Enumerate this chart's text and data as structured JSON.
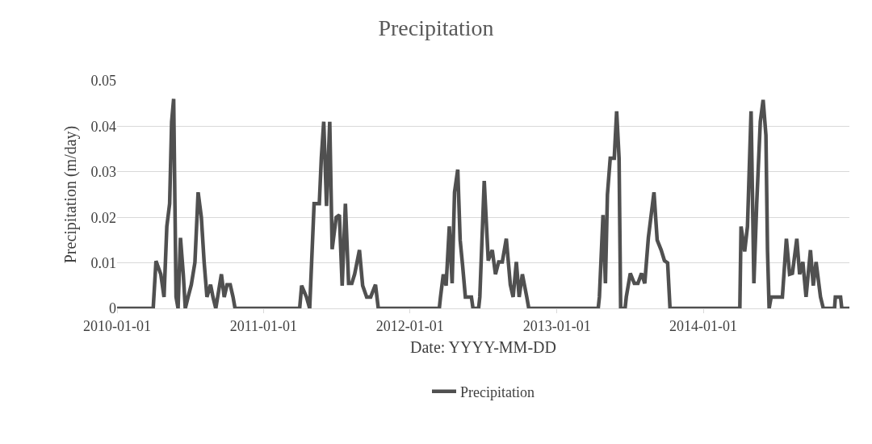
{
  "chart_data": {
    "type": "line",
    "title": "Precipitation",
    "xlabel": "Date: YYYY-MM-DD",
    "ylabel": "Precipitation (m/day)",
    "x": [
      "2010-01-01",
      "2010-04-01",
      "2010-04-08",
      "2010-04-20",
      "2010-04-28",
      "2010-05-05",
      "2010-05-12",
      "2010-05-17",
      "2010-05-22",
      "2010-05-28",
      "2010-06-02",
      "2010-06-08",
      "2010-06-15",
      "2010-06-20",
      "2010-06-27",
      "2010-07-05",
      "2010-07-14",
      "2010-07-22",
      "2010-07-30",
      "2010-08-06",
      "2010-08-13",
      "2010-08-22",
      "2010-08-28",
      "2010-09-04",
      "2010-09-18",
      "2010-09-25",
      "2010-10-02",
      "2010-10-10",
      "2010-10-17",
      "2010-10-22",
      "2011-04-01",
      "2011-04-06",
      "2011-04-18",
      "2011-04-26",
      "2011-05-07",
      "2011-05-20",
      "2011-05-25",
      "2011-05-31",
      "2011-06-07",
      "2011-06-15",
      "2011-06-21",
      "2011-07-01",
      "2011-07-09",
      "2011-07-16",
      "2011-07-24",
      "2011-08-01",
      "2011-08-09",
      "2011-08-16",
      "2011-08-28",
      "2011-09-05",
      "2011-09-15",
      "2011-09-25",
      "2011-10-07",
      "2011-10-14",
      "2012-03-14",
      "2012-03-17",
      "2012-03-24",
      "2012-03-31",
      "2012-04-08",
      "2012-04-15",
      "2012-04-21",
      "2012-04-29",
      "2012-05-05",
      "2012-05-11",
      "2012-05-18",
      "2012-06-02",
      "2012-06-06",
      "2012-06-20",
      "2012-06-23",
      "2012-07-04",
      "2012-07-14",
      "2012-07-24",
      "2012-08-01",
      "2012-08-09",
      "2012-08-18",
      "2012-08-28",
      "2012-09-07",
      "2012-09-14",
      "2012-09-22",
      "2012-09-29",
      "2012-10-07",
      "2012-10-18",
      "2012-10-23",
      "2013-04-14",
      "2013-04-17",
      "2013-04-26",
      "2013-05-02",
      "2013-05-07",
      "2013-05-14",
      "2013-05-24",
      "2013-05-30",
      "2013-06-05",
      "2013-06-09",
      "2013-06-20",
      "2013-06-23",
      "2013-07-03",
      "2013-07-13",
      "2013-07-22",
      "2013-07-31",
      "2013-08-08",
      "2013-08-17",
      "2013-08-31",
      "2013-09-08",
      "2013-09-18",
      "2013-09-26",
      "2013-10-04",
      "2013-10-10",
      "2014-04-02",
      "2014-04-05",
      "2014-04-14",
      "2014-04-21",
      "2014-04-30",
      "2014-05-07",
      "2014-05-14",
      "2014-05-23",
      "2014-05-30",
      "2014-06-06",
      "2014-06-10",
      "2014-06-14",
      "2014-06-19",
      "2014-06-29",
      "2014-07-06",
      "2014-07-17",
      "2014-07-27",
      "2014-08-04",
      "2014-08-11",
      "2014-08-22",
      "2014-08-29",
      "2014-09-06",
      "2014-09-14",
      "2014-09-25",
      "2014-10-02",
      "2014-10-09",
      "2014-10-20",
      "2014-10-27",
      "2014-11-24",
      "2014-11-26",
      "2014-12-09",
      "2014-12-12",
      "2014-12-31"
    ],
    "series": [
      {
        "name": "Precipitation",
        "color": "#505050",
        "values": [
          0,
          0,
          0.0104,
          0.0075,
          0.0025,
          0.018,
          0.023,
          0.041,
          0.046,
          0.0025,
          0,
          0.0155,
          0.0075,
          0,
          0.0025,
          0.0052,
          0.0101,
          0.0255,
          0.02,
          0.0101,
          0.0025,
          0.0052,
          0.0025,
          0,
          0.0075,
          0.0025,
          0.0052,
          0.0052,
          0.0025,
          0,
          0,
          0.005,
          0.0025,
          0,
          0.023,
          0.023,
          0.033,
          0.041,
          0.0225,
          0.041,
          0.013,
          0.02,
          0.0205,
          0.005,
          0.023,
          0.0055,
          0.0055,
          0.0075,
          0.0128,
          0.005,
          0.0025,
          0.0025,
          0.0052,
          0,
          0,
          0.0025,
          0.0075,
          0.005,
          0.018,
          0.0055,
          0.0255,
          0.0305,
          0.015,
          0.0095,
          0.0025,
          0.0025,
          0,
          0,
          0.0025,
          0.028,
          0.0105,
          0.0128,
          0.0075,
          0.0102,
          0.0102,
          0.0153,
          0.0052,
          0.0025,
          0.0102,
          0.0025,
          0.0075,
          0.0025,
          0,
          0,
          0.0025,
          0.0205,
          0.0055,
          0.025,
          0.033,
          0.033,
          0.0433,
          0.033,
          0,
          0,
          0.0025,
          0.0077,
          0.0055,
          0.0055,
          0.0077,
          0.0055,
          0.0155,
          0.0255,
          0.015,
          0.0128,
          0.0105,
          0.01,
          0,
          0,
          0.018,
          0.0125,
          0.018,
          0.0433,
          0.0055,
          0.023,
          0.041,
          0.0458,
          0.038,
          0.0125,
          0,
          0.0025,
          0.0025,
          0.0025,
          0.0025,
          0.0153,
          0.0075,
          0.0077,
          0.0153,
          0.0075,
          0.0102,
          0.0025,
          0.0128,
          0.005,
          0.0102,
          0.0025,
          0,
          0,
          0.0025,
          0.0025,
          0,
          0
        ]
      }
    ],
    "xlim": [
      "2010-01-01",
      "2014-12-31"
    ],
    "xticks": [
      "2010-01-01",
      "2011-01-01",
      "2012-01-01",
      "2013-01-01",
      "2014-01-01"
    ],
    "ylim": [
      0,
      0.05
    ],
    "yticks": [
      0,
      0.01,
      0.02,
      0.03,
      0.04,
      0.05
    ],
    "grid": "y",
    "legend": "bottom",
    "marker": "none",
    "line_style": "solid"
  }
}
